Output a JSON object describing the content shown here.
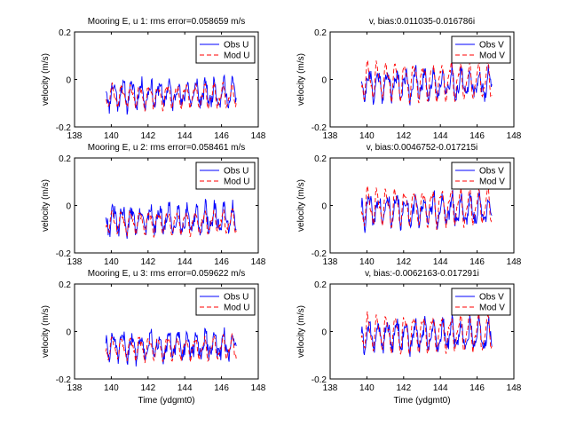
{
  "chart_data": [
    {
      "type": "line",
      "title": "Mooring E, u 1: rms error=0.058659 m/s",
      "xlabel": "",
      "ylabel": "velocity (m/s)",
      "xlim": [
        138,
        148
      ],
      "ylim": [
        -0.2,
        0.2
      ],
      "x_ticks": [
        "138",
        "140",
        "142",
        "144",
        "146",
        "148"
      ],
      "y_ticks": [
        "-0.2",
        "0",
        "0.2"
      ],
      "legend": "top-right",
      "series": [
        {
          "name": "Obs U",
          "color": "#0000ff",
          "style": "solid",
          "start": 139.7,
          "end": 146.8,
          "mean": -0.06,
          "amp": 0.045,
          "noise": 0.03,
          "seed": 11
        },
        {
          "name": "Mod U",
          "color": "#ff0000",
          "style": "dashed",
          "start": 139.7,
          "end": 146.8,
          "mean": -0.07,
          "amp": 0.04,
          "noise": 0.012,
          "seed": 12
        }
      ]
    },
    {
      "type": "line",
      "title": "v, bias:0.011035-0.016786i",
      "xlabel": "",
      "ylabel": "velocity (m/s)",
      "xlim": [
        138,
        148
      ],
      "ylim": [
        -0.2,
        0.2
      ],
      "x_ticks": [
        "138",
        "140",
        "142",
        "144",
        "146",
        "148"
      ],
      "y_ticks": [
        "-0.2",
        "0",
        "0.2"
      ],
      "legend": "top-right",
      "series": [
        {
          "name": "Obs V",
          "color": "#0000ff",
          "style": "solid",
          "start": 139.7,
          "end": 146.8,
          "mean": -0.02,
          "amp": 0.05,
          "noise": 0.03,
          "seed": 21
        },
        {
          "name": "Mod V",
          "color": "#ff0000",
          "style": "dashed",
          "start": 139.7,
          "end": 146.8,
          "mean": -0.005,
          "amp": 0.065,
          "noise": 0.012,
          "seed": 22
        }
      ]
    },
    {
      "type": "line",
      "title": "Mooring E, u 2: rms error=0.058461 m/s",
      "xlabel": "",
      "ylabel": "velocity (m/s)",
      "xlim": [
        138,
        148
      ],
      "ylim": [
        -0.2,
        0.2
      ],
      "x_ticks": [
        "138",
        "140",
        "142",
        "144",
        "146",
        "148"
      ],
      "y_ticks": [
        "-0.2",
        "0",
        "0.2"
      ],
      "legend": "top-right",
      "series": [
        {
          "name": "Obs U",
          "color": "#0000ff",
          "style": "solid",
          "start": 139.7,
          "end": 146.8,
          "mean": -0.06,
          "amp": 0.045,
          "noise": 0.03,
          "seed": 31
        },
        {
          "name": "Mod U",
          "color": "#ff0000",
          "style": "dashed",
          "start": 139.7,
          "end": 146.8,
          "mean": -0.07,
          "amp": 0.04,
          "noise": 0.012,
          "seed": 32
        }
      ]
    },
    {
      "type": "line",
      "title": "v, bias:0.0046752-0.017215i",
      "xlabel": "",
      "ylabel": "velocity (m/s)",
      "xlim": [
        138,
        148
      ],
      "ylim": [
        -0.2,
        0.2
      ],
      "x_ticks": [
        "138",
        "140",
        "142",
        "144",
        "146",
        "148"
      ],
      "y_ticks": [
        "-0.2",
        "0",
        "0.2"
      ],
      "legend": "top-right",
      "series": [
        {
          "name": "Obs V",
          "color": "#0000ff",
          "style": "solid",
          "start": 139.7,
          "end": 146.8,
          "mean": -0.02,
          "amp": 0.05,
          "noise": 0.03,
          "seed": 41
        },
        {
          "name": "Mod V",
          "color": "#ff0000",
          "style": "dashed",
          "start": 139.7,
          "end": 146.8,
          "mean": -0.005,
          "amp": 0.065,
          "noise": 0.012,
          "seed": 42
        }
      ]
    },
    {
      "type": "line",
      "title": "Mooring E, u 3: rms error=0.059622 m/s",
      "xlabel": "Time (ydgmt0)",
      "ylabel": "velocity (m/s)",
      "xlim": [
        138,
        148
      ],
      "ylim": [
        -0.2,
        0.2
      ],
      "x_ticks": [
        "138",
        "140",
        "142",
        "144",
        "146",
        "148"
      ],
      "y_ticks": [
        "-0.2",
        "0",
        "0.2"
      ],
      "legend": "top-right",
      "series": [
        {
          "name": "Obs U",
          "color": "#0000ff",
          "style": "solid",
          "start": 139.7,
          "end": 146.8,
          "mean": -0.06,
          "amp": 0.045,
          "noise": 0.03,
          "seed": 51
        },
        {
          "name": "Mod U",
          "color": "#ff0000",
          "style": "dashed",
          "start": 139.7,
          "end": 146.8,
          "mean": -0.07,
          "amp": 0.04,
          "noise": 0.012,
          "seed": 52
        }
      ]
    },
    {
      "type": "line",
      "title": "v, bias:-0.0062163-0.017291i",
      "xlabel": "Time (ydgmt0)",
      "ylabel": "velocity (m/s)",
      "xlim": [
        138,
        148
      ],
      "ylim": [
        -0.2,
        0.2
      ],
      "x_ticks": [
        "138",
        "140",
        "142",
        "144",
        "146",
        "148"
      ],
      "y_ticks": [
        "-0.2",
        "0",
        "0.2"
      ],
      "legend": "top-right",
      "series": [
        {
          "name": "Obs V",
          "color": "#0000ff",
          "style": "solid",
          "start": 139.7,
          "end": 146.8,
          "mean": -0.02,
          "amp": 0.05,
          "noise": 0.03,
          "seed": 61
        },
        {
          "name": "Mod V",
          "color": "#ff0000",
          "style": "dashed",
          "start": 139.7,
          "end": 146.8,
          "mean": -0.005,
          "amp": 0.065,
          "noise": 0.012,
          "seed": 62
        }
      ]
    }
  ]
}
